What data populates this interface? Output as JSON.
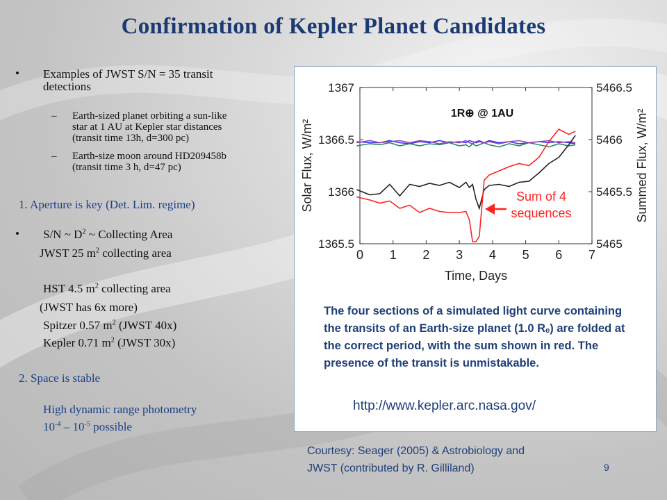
{
  "title": "Confirmation of Kepler Planet Candidates",
  "left": {
    "bullet_char": "•",
    "dash_char": "–",
    "bullet1": "Examples of JWST S/N = 35 transit",
    "bullet1_cont": "detections",
    "sub1_line1": "Earth-sized planet orbiting a sun-like",
    "sub1_line2": "star at 1 AU at Kepler star distances",
    "sub1_line3": "(transit time 13h, d=300 pc)",
    "sub2_line1": "Earth-size moon around HD209458b",
    "sub2_line2": "(transit time 3 h, d=47 pc)",
    "point1": "1. Aperture is key (Det. Lim. regime)",
    "sn_pre": "S/N ~ D",
    "sn_sup": "2",
    "sn_post": " ~ Collecting Area",
    "jwst_pre": "JWST 25 m",
    "jwst_post": " collecting area",
    "hst_pre": "HST 4.5 m",
    "hst_post": " collecting area",
    "jwst_more": "(JWST has 6x more)",
    "spitzer_pre": "Spitzer 0.57 m",
    "spitzer_post": " (JWST 40x)",
    "kepler_pre": "Kepler 0.71 m",
    "kepler_post": "  (JWST 30x)",
    "sq": "2",
    "point2": "2. Space is stable",
    "hdr": "High dynamic range photometry",
    "range_a": "10",
    "range_a_exp": "-4",
    "range_mid": " – 10",
    "range_b_exp": "-5",
    "range_post": " possible"
  },
  "chart_data": {
    "type": "line",
    "xlabel": "Time, Days",
    "ylabel": "Solar Flux, W/m²",
    "ylabel2": "Summed Flux, W/m²",
    "xlim": [
      0,
      7
    ],
    "ylim": [
      1365.5,
      1367
    ],
    "ylim2": [
      5465,
      5466.5
    ],
    "x_ticks": [
      "0",
      "1",
      "2",
      "3",
      "4",
      "5",
      "6",
      "7"
    ],
    "y_ticks": [
      "1365.5",
      "1366",
      "1366.5",
      "1367"
    ],
    "y2_ticks": [
      "5465",
      "5465.5",
      "5466",
      "5466.5"
    ],
    "annotation_top": "1R⊕ @ 1AU",
    "annotation_sum": [
      "Sum of 4",
      "sequences"
    ],
    "x": [
      -0.1,
      0.3,
      0.6,
      0.9,
      1.2,
      1.5,
      1.8,
      2.1,
      2.4,
      2.7,
      3.0,
      3.2,
      3.3,
      3.4,
      3.5,
      3.6,
      3.75,
      3.9,
      4.2,
      4.5,
      4.8,
      5.1,
      5.4,
      5.7,
      6.0,
      6.3,
      6.5
    ],
    "series": [
      {
        "color": "#3333ff",
        "values": [
          1366.48,
          1366.47,
          1366.47,
          1366.49,
          1366.47,
          1366.46,
          1366.48,
          1366.47,
          1366.49,
          1366.47,
          1366.48,
          1366.47,
          1366.49,
          1366.48,
          1366.47,
          1366.48,
          1366.47,
          1366.49,
          1366.47,
          1366.48,
          1366.46,
          1366.47,
          1366.48,
          1366.47,
          1366.48,
          1366.47,
          1366.46
        ]
      },
      {
        "color": "#2e8b57",
        "values": [
          1366.44,
          1366.46,
          1366.45,
          1366.47,
          1366.44,
          1366.46,
          1366.44,
          1366.46,
          1366.45,
          1366.47,
          1366.44,
          1366.45,
          1366.43,
          1366.46,
          1366.44,
          1366.45,
          1366.47,
          1366.45,
          1366.43,
          1366.46,
          1366.44,
          1366.47,
          1366.45,
          1366.43,
          1366.46,
          1366.44,
          1366.45
        ]
      },
      {
        "color": "#9944aa",
        "values": [
          1366.47,
          1366.49,
          1366.47,
          1366.48,
          1366.49,
          1366.47,
          1366.49,
          1366.48,
          1366.46,
          1366.48,
          1366.47,
          1366.49,
          1366.47,
          1366.46,
          1366.48,
          1366.49,
          1366.47,
          1366.48,
          1366.46,
          1366.48,
          1366.49,
          1366.47,
          1366.48,
          1366.49,
          1366.47,
          1366.48,
          1366.47
        ]
      },
      {
        "color": "#222222",
        "values": [
          1366.02,
          1365.97,
          1365.98,
          1366.07,
          1365.96,
          1366.07,
          1366.05,
          1366.08,
          1366.06,
          1366.09,
          1366.04,
          1366.09,
          1366.04,
          1366.07,
          1365.93,
          1365.84,
          1366.02,
          1366.06,
          1366.07,
          1366.05,
          1366.09,
          1366.1,
          1366.18,
          1366.27,
          1366.33,
          1366.45,
          1366.54
        ]
      },
      {
        "color": "#ff2222",
        "values": [
          1365.95,
          1365.92,
          1365.89,
          1365.91,
          1365.84,
          1365.87,
          1365.8,
          1365.84,
          1365.81,
          1365.8,
          1365.8,
          1365.81,
          1365.73,
          1365.52,
          1365.52,
          1365.57,
          1366.11,
          1366.16,
          1366.2,
          1366.24,
          1366.27,
          1366.25,
          1366.33,
          1366.48,
          1366.6,
          1366.55,
          1366.58
        ]
      }
    ]
  },
  "caption": "The four sections of a simulated light curve containing the transits of an Earth-size planet (1.0 Rₑ) are folded at the correct period, with the sum shown in  red. The presence of the transit is unmistakable.",
  "url": "http://www.kepler.arc.nasa.gov/",
  "courtesy_line1": "Courtesy: Seager (2005) & Astrobiology and",
  "courtesy_line2": "JWST  (contributed by R. Gilliland)",
  "page_number": "9"
}
